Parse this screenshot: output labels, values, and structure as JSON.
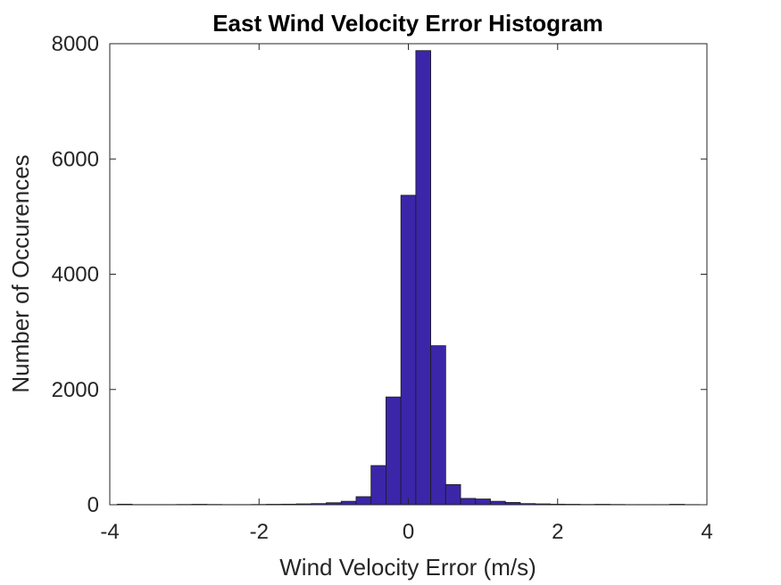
{
  "chart_data": {
    "type": "bar",
    "title": "East Wind Velocity Error Histogram",
    "xlabel": "Wind Velocity Error (m/s)",
    "ylabel": "Number of Occurences",
    "xlim": [
      -4,
      4
    ],
    "ylim": [
      0,
      8000
    ],
    "xticks": [
      "-4",
      "-2",
      "0",
      "2",
      "4"
    ],
    "yticks": [
      "0",
      "2000",
      "4000",
      "6000",
      "8000"
    ],
    "grid": false,
    "bar_color": "#3b26a9",
    "bar_edge_color": "#1a1a1a",
    "bin_width": 0.2,
    "series": [
      {
        "bin_centers": [
          -3.8,
          -3.6,
          -3.4,
          -3.2,
          -3.0,
          -2.8,
          -2.6,
          -2.4,
          -2.2,
          -2.0,
          -1.8,
          -1.6,
          -1.4,
          -1.2,
          -1.0,
          -0.8,
          -0.6,
          -0.4,
          -0.2,
          0.0,
          0.2,
          0.4,
          0.6,
          0.8,
          1.0,
          1.2,
          1.4,
          1.6,
          1.8,
          2.0,
          2.2,
          2.4,
          2.6,
          2.8,
          3.0,
          3.2,
          3.4,
          3.6,
          3.8
        ],
        "values": [
          10,
          3,
          3,
          3,
          5,
          8,
          5,
          3,
          3,
          5,
          8,
          10,
          15,
          20,
          35,
          60,
          140,
          680,
          1870,
          5370,
          7880,
          2760,
          350,
          110,
          100,
          60,
          40,
          20,
          15,
          10,
          8,
          5,
          8,
          5,
          3,
          3,
          3,
          8,
          3
        ]
      }
    ]
  }
}
